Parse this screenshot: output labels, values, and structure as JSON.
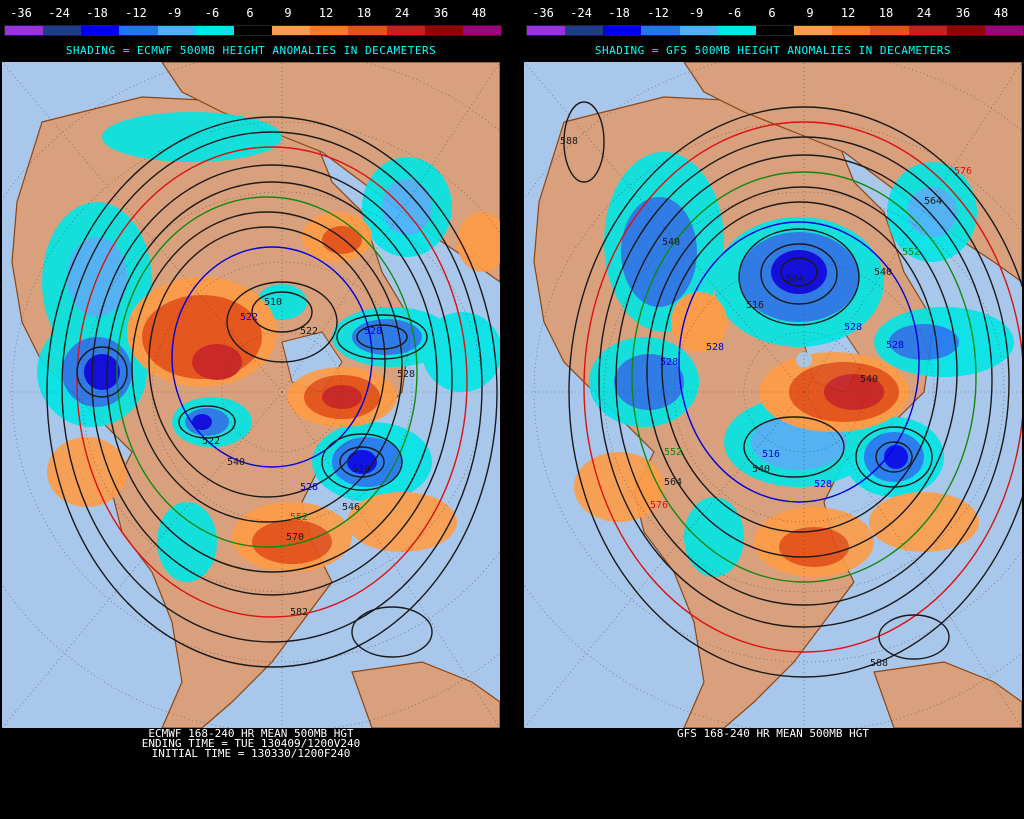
{
  "color_scale": {
    "tick_labels": [
      "-36",
      "-24",
      "-18",
      "-12",
      "-9",
      "-6",
      "6",
      "9",
      "12",
      "18",
      "24",
      "36",
      "48"
    ],
    "colors": [
      "#9b30e6",
      "#1e3c8c",
      "#0000e6",
      "#1e78f0",
      "#46b4ff",
      "#00e6e6",
      "#000000",
      "#ff9c46",
      "#ff7a1e",
      "#e65014",
      "#c81e1e",
      "#960000",
      "#a0007a"
    ]
  },
  "colors": {
    "ocean": "#a9c7ea",
    "land": "#d9a07d",
    "coast": "#8b4513",
    "contour": "#1a1a1a",
    "contour_blue": "#0000dd",
    "contour_green": "#118811",
    "contour_red": "#dd1111"
  },
  "left_panel": {
    "title": "SHADING = ECMWF 500MB HEIGHT ANOMALIES IN DECAMETERS",
    "footer": [
      "ECMWF 168-240 HR MEAN 500MB HGT",
      "ENDING TIME = TUE 130409/1200V240",
      "INITIAL TIME = 130330/1200F240"
    ],
    "contour_labels": [
      "510",
      "522",
      "522",
      "528",
      "522",
      "528",
      "552",
      "546",
      "570",
      "540",
      "528",
      "510",
      "582"
    ]
  },
  "right_panel": {
    "title": "SHADING = GFS 500MB HEIGHT ANOMALIES IN DECAMETERS",
    "footer": [
      "GFS 168-240 HR MEAN 500MB HGT"
    ],
    "contour_labels": [
      "588",
      "576",
      "564",
      "540",
      "552",
      "540",
      "516",
      "528",
      "528",
      "540",
      "528",
      "552",
      "564",
      "576",
      "516",
      "528",
      "540",
      "528",
      "588",
      "504"
    ]
  }
}
